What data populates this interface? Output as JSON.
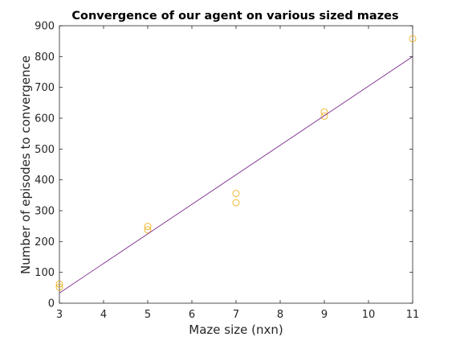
{
  "chart_data": {
    "type": "scatter",
    "title": "Convergence of our agent on various sized mazes",
    "xlabel": "Maze size (nxn)",
    "ylabel": "Number of episodes to convergence",
    "xlim": [
      3,
      11
    ],
    "ylim": [
      0,
      900
    ],
    "xticks": [
      3,
      4,
      5,
      6,
      7,
      8,
      9,
      10,
      11
    ],
    "yticks": [
      0,
      100,
      200,
      300,
      400,
      500,
      600,
      700,
      800,
      900
    ],
    "grid": false,
    "series": [
      {
        "kind": "scatter",
        "marker": "circle-open",
        "color": "#EDB120",
        "x": [
          3,
          3,
          5,
          5,
          7,
          7,
          9,
          9,
          11
        ],
        "y": [
          62,
          52,
          249,
          238,
          356,
          326,
          620,
          607,
          858
        ]
      },
      {
        "kind": "line",
        "color": "#7E2F8E",
        "x": [
          3,
          11
        ],
        "y": [
          33,
          800
        ]
      }
    ]
  }
}
